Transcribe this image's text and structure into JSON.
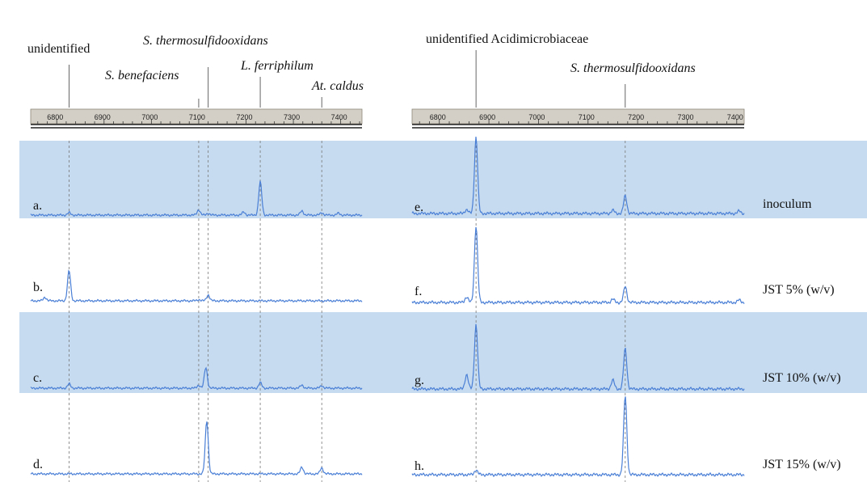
{
  "chart_data": {
    "type": "line",
    "description_type": "capillary electrophoresis electropherograms",
    "panels": [
      {
        "side": "left",
        "axis_ticks": [
          6800,
          6900,
          7000,
          7100,
          7200,
          7300,
          7400
        ],
        "xlim": [
          6745,
          7445
        ],
        "peak_labels": [
          {
            "label": "unidentified",
            "x": 6826,
            "italic": false
          },
          {
            "label": "S. benefaciens",
            "x": 7100,
            "italic": true
          },
          {
            "label": "S. thermosulfidooxidans",
            "x": 7120,
            "italic": true
          },
          {
            "label": "L. ferriphilum",
            "x": 7230,
            "italic": true
          },
          {
            "label": "At. caldus",
            "x": 7360,
            "italic": true
          }
        ],
        "series": [
          {
            "name": "a.",
            "peaks": [
              {
                "x": 6826,
                "h": 0.04
              },
              {
                "x": 7100,
                "h": 0.09
              },
              {
                "x": 7120,
                "h": 0.03
              },
              {
                "x": 7195,
                "h": 0.05
              },
              {
                "x": 7230,
                "h": 0.55
              },
              {
                "x": 7318,
                "h": 0.07
              },
              {
                "x": 7360,
                "h": 0.04
              },
              {
                "x": 7395,
                "h": 0.03
              }
            ]
          },
          {
            "name": "b.",
            "peaks": [
              {
                "x": 6775,
                "h": 0.06
              },
              {
                "x": 6826,
                "h": 0.5
              },
              {
                "x": 7100,
                "h": 0.02
              },
              {
                "x": 7120,
                "h": 0.1
              }
            ]
          },
          {
            "name": "c.",
            "peaks": [
              {
                "x": 6826,
                "h": 0.07
              },
              {
                "x": 7100,
                "h": 0.05
              },
              {
                "x": 7115,
                "h": 0.34
              },
              {
                "x": 7230,
                "h": 0.09
              },
              {
                "x": 7318,
                "h": 0.05
              },
              {
                "x": 7360,
                "h": 0.04
              }
            ]
          },
          {
            "name": "d.",
            "peaks": [
              {
                "x": 7117,
                "h": 0.88
              },
              {
                "x": 7318,
                "h": 0.11
              },
              {
                "x": 7360,
                "h": 0.1
              }
            ]
          }
        ]
      },
      {
        "side": "right",
        "axis_ticks": [
          6800,
          6900,
          7000,
          7100,
          7200,
          7300,
          7400
        ],
        "xlim": [
          6745,
          7415
        ],
        "peak_labels": [
          {
            "label": "unidentified Acidimicrobiaceae",
            "x": 6874,
            "italic": false
          },
          {
            "label": "S. thermosulfidooxidans",
            "x": 7175,
            "italic": true
          }
        ],
        "series": [
          {
            "name": "e.",
            "peaks": [
              {
                "x": 6855,
                "h": 0.05
              },
              {
                "x": 6874,
                "h": 0.95
              },
              {
                "x": 7150,
                "h": 0.04
              },
              {
                "x": 7175,
                "h": 0.22
              },
              {
                "x": 7405,
                "h": 0.03
              }
            ]
          },
          {
            "name": "f.",
            "peaks": [
              {
                "x": 6855,
                "h": 0.07
              },
              {
                "x": 6874,
                "h": 0.95
              },
              {
                "x": 7150,
                "h": 0.04
              },
              {
                "x": 7175,
                "h": 0.2
              },
              {
                "x": 7405,
                "h": 0.03
              }
            ]
          },
          {
            "name": "g.",
            "peaks": [
              {
                "x": 6855,
                "h": 0.18
              },
              {
                "x": 6874,
                "h": 0.8
              },
              {
                "x": 7150,
                "h": 0.11
              },
              {
                "x": 7175,
                "h": 0.5
              }
            ]
          },
          {
            "name": "h.",
            "peaks": [
              {
                "x": 6874,
                "h": 0.06
              },
              {
                "x": 7175,
                "h": 0.98
              }
            ]
          }
        ]
      }
    ],
    "row_labels": [
      "inoculum",
      "JST 5% (w/v)",
      "JST 10% (w/v)",
      "JST 15% (w/v)"
    ],
    "highlighted_rows": [
      0,
      2
    ],
    "colors": {
      "trace": "#4a7fd6",
      "band": "#c6dbef",
      "ruler": "#d4cfc6"
    },
    "grid": false
  }
}
